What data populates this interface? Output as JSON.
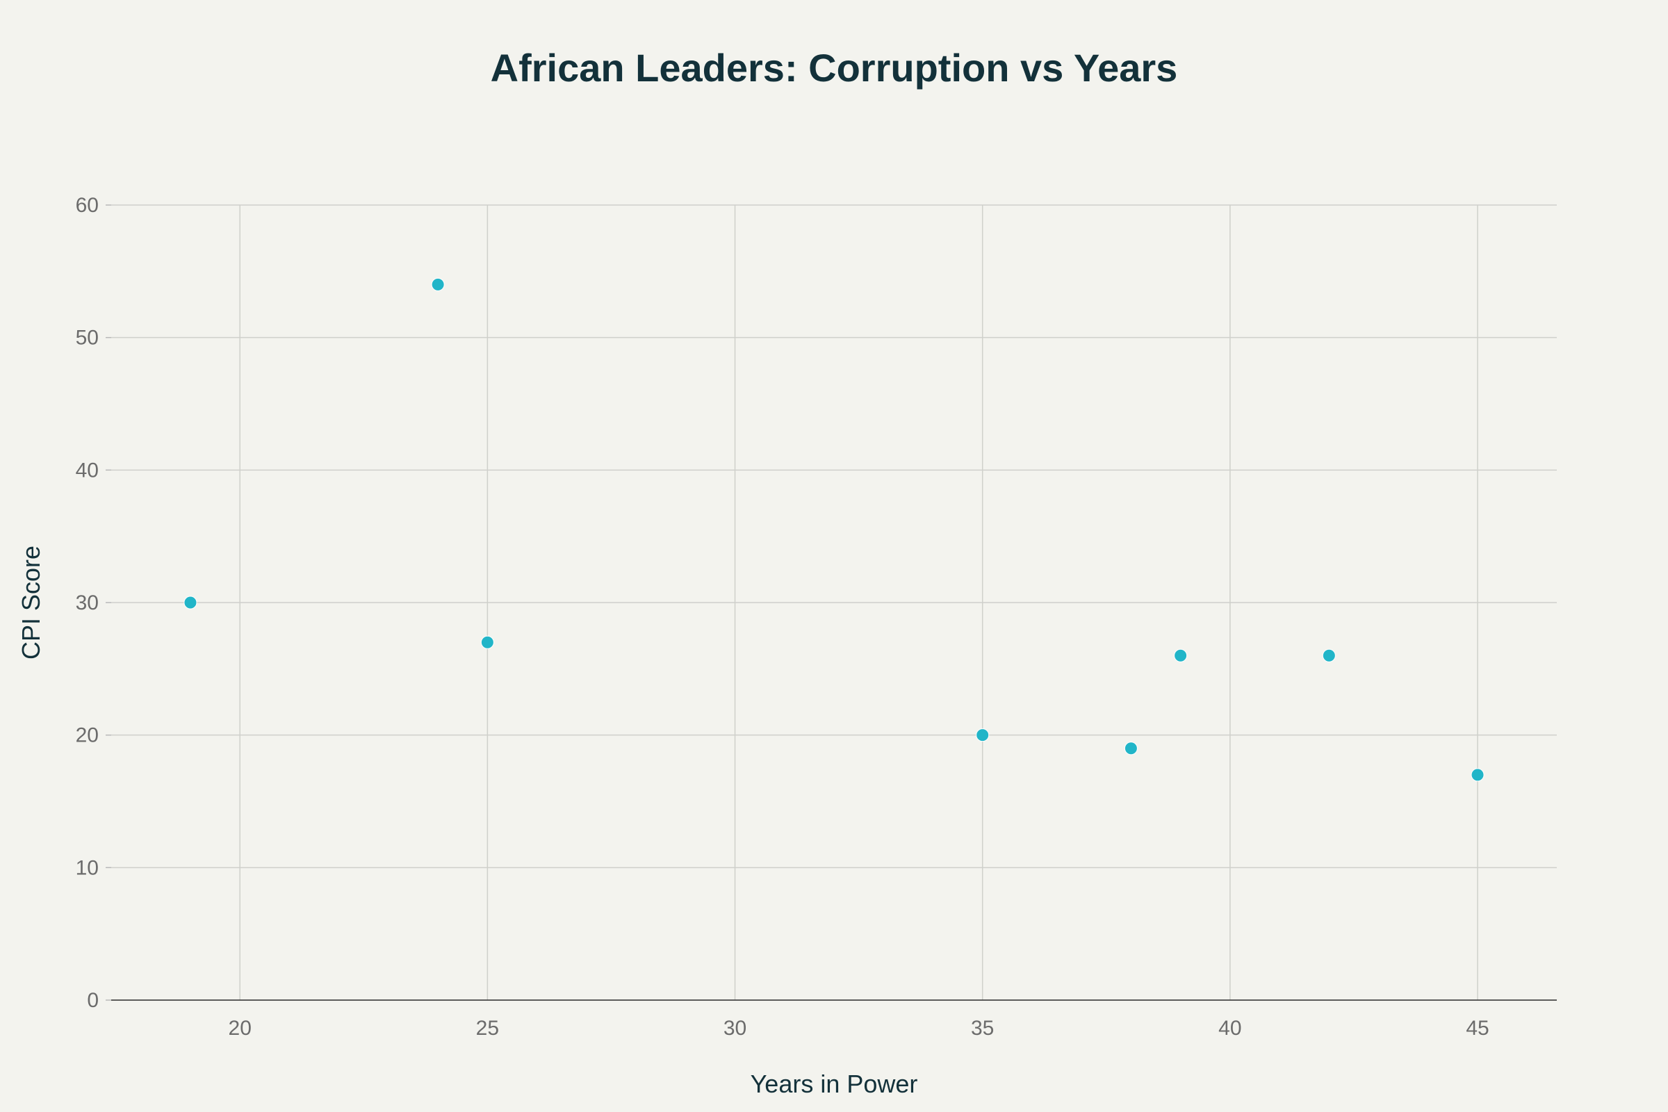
{
  "chart_data": {
    "type": "scatter",
    "title": "African Leaders: Corruption vs Years",
    "xlabel": "Years in Power",
    "ylabel": "CPI Score",
    "xlim": [
      17.4,
      46.6
    ],
    "ylim": [
      0,
      60
    ],
    "xticks": [
      20,
      25,
      30,
      35,
      40,
      45
    ],
    "yticks": [
      0,
      10,
      20,
      30,
      40,
      50,
      60
    ],
    "grid": true,
    "marker_color": "#21b5c8",
    "points": [
      {
        "x": 19,
        "y": 30
      },
      {
        "x": 24,
        "y": 54
      },
      {
        "x": 25,
        "y": 27
      },
      {
        "x": 35,
        "y": 20
      },
      {
        "x": 38,
        "y": 19
      },
      {
        "x": 39,
        "y": 26
      },
      {
        "x": 42,
        "y": 26
      },
      {
        "x": 45,
        "y": 17
      }
    ]
  }
}
